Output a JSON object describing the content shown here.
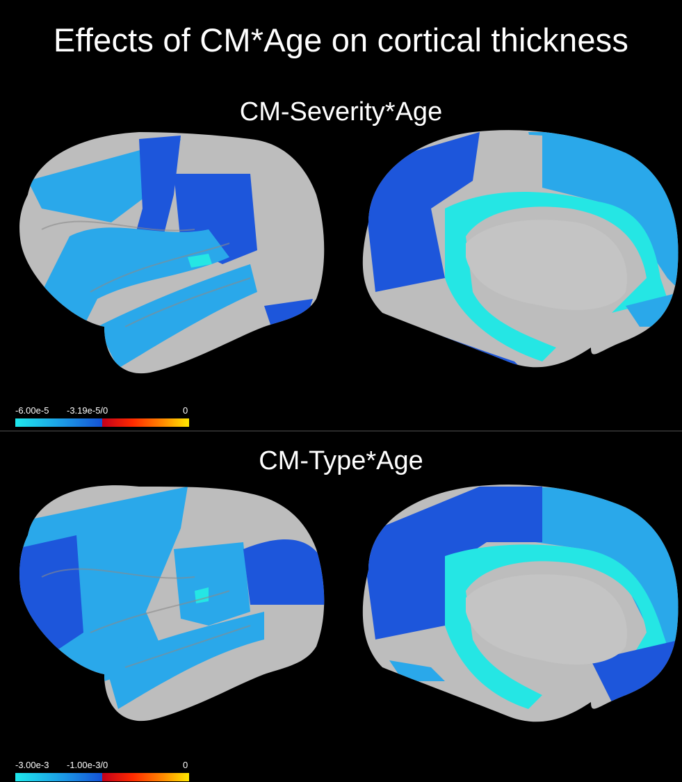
{
  "figure": {
    "title": "Effects of CM*Age on cortical thickness"
  },
  "panels": [
    {
      "title": "CM-Severity*Age",
      "colorbar": {
        "min_label": "-6.00e-5",
        "mid_label": "-3.19e-5/0",
        "max_label": "0"
      }
    },
    {
      "title": "CM-Type*Age",
      "colorbar": {
        "min_label": "-3.00e-3",
        "mid_label": "-1.00e-3/0",
        "max_label": "0"
      }
    }
  ],
  "colors": {
    "background": "#000000",
    "cortex_gray": "#bdbdbd",
    "light_blue": "#2aa8ea",
    "dark_blue": "#1d56db",
    "cyan": "#25e6e4",
    "red": "#e0101c",
    "yellow": "#ffe800"
  }
}
